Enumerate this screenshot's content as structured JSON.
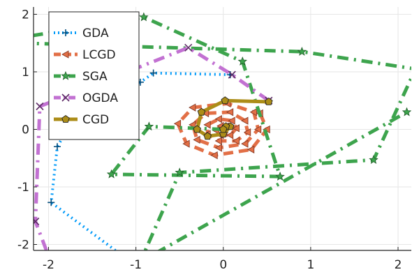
{
  "chart_data": {
    "type": "line",
    "title": "",
    "xlabel": "",
    "ylabel": "",
    "xlim": [
      -2.1,
      2.1
    ],
    "ylim": [
      -2.1,
      2.1
    ],
    "x_ticks": [
      -2,
      -1,
      0,
      1,
      2
    ],
    "y_ticks": [
      -2,
      -1,
      0,
      1,
      2
    ],
    "x_tick_labels": [
      "-2",
      "-1",
      "0",
      "1",
      "2"
    ],
    "y_tick_labels": [
      "-2",
      "-1",
      "0",
      "1",
      "2"
    ],
    "grid": true,
    "legend_position": "top-left",
    "series": [
      {
        "name": "GDA",
        "color": "#009AF9",
        "dash": "dot",
        "marker": "plus",
        "points": [
          [
            0.08,
            0.95
          ],
          [
            -0.8,
            0.98
          ],
          [
            -0.95,
            0.82
          ],
          [
            -1.55,
            0.6
          ],
          [
            -1.9,
            -0.3
          ],
          [
            -1.97,
            -1.27
          ],
          [
            -1.15,
            -2.2
          ]
        ]
      },
      {
        "name": "LCGD",
        "color": "#E26F46",
        "dash": "dash",
        "marker": "ltriangle",
        "points": [
          [
            0.42,
            0.28
          ],
          [
            0.5,
            0.0
          ],
          [
            0.32,
            -0.35
          ],
          [
            -0.1,
            -0.45
          ],
          [
            -0.42,
            -0.25
          ],
          [
            -0.52,
            0.1
          ],
          [
            -0.35,
            0.38
          ],
          [
            0.05,
            0.45
          ],
          [
            0.35,
            0.3
          ],
          [
            0.4,
            0.0
          ],
          [
            0.25,
            -0.25
          ],
          [
            -0.05,
            -0.32
          ],
          [
            -0.3,
            -0.18
          ],
          [
            -0.35,
            0.08
          ],
          [
            -0.2,
            0.28
          ],
          [
            0.08,
            0.3
          ],
          [
            0.25,
            0.15
          ],
          [
            0.28,
            -0.05
          ],
          [
            0.15,
            -0.2
          ],
          [
            -0.05,
            -0.2
          ],
          [
            -0.18,
            -0.08
          ],
          [
            -0.18,
            0.08
          ],
          [
            -0.05,
            0.18
          ],
          [
            0.1,
            0.15
          ],
          [
            0.15,
            0.02
          ],
          [
            0.08,
            -0.1
          ],
          [
            -0.03,
            -0.1
          ],
          [
            -0.08,
            -0.02
          ],
          [
            -0.03,
            0.06
          ],
          [
            0.03,
            0.05
          ],
          [
            0.02,
            0.0
          ]
        ]
      },
      {
        "name": "SGA",
        "color": "#3DA44D",
        "dash": "dashdot",
        "marker": "star",
        "points": [
          [
            0.0,
            0.0
          ],
          [
            -0.85,
            0.05
          ],
          [
            -1.28,
            -0.78
          ],
          [
            0.65,
            -0.82
          ],
          [
            0.22,
            1.18
          ],
          [
            -0.91,
            1.95
          ],
          [
            -2.3,
            1.6
          ],
          [
            -2.3,
            1.5
          ],
          [
            0.9,
            1.35
          ],
          [
            2.2,
            1.05
          ],
          [
            1.72,
            -0.53
          ],
          [
            -0.5,
            -0.75
          ],
          [
            -0.95,
            -2.3
          ],
          [
            2.1,
            0.3
          ]
        ]
      },
      {
        "name": "OGDA",
        "color": "#C271D2",
        "dash": "dashdot",
        "marker": "xcross",
        "points": [
          [
            0.52,
            0.5
          ],
          [
            0.1,
            0.95
          ],
          [
            -0.4,
            1.42
          ],
          [
            -2.1,
            0.4
          ],
          [
            -2.15,
            -1.6
          ],
          [
            -2.0,
            -2.2
          ]
        ]
      },
      {
        "name": "CGD",
        "color": "#AC8D18",
        "dash": "solid",
        "marker": "pentagon",
        "points": [
          [
            0.52,
            0.48
          ],
          [
            0.02,
            0.5
          ],
          [
            -0.25,
            0.3
          ],
          [
            -0.3,
            0.0
          ],
          [
            -0.18,
            -0.12
          ],
          [
            0.0,
            -0.08
          ],
          [
            0.08,
            0.05
          ],
          [
            0.03,
            0.05
          ],
          [
            0.0,
            0.0
          ]
        ]
      }
    ]
  }
}
